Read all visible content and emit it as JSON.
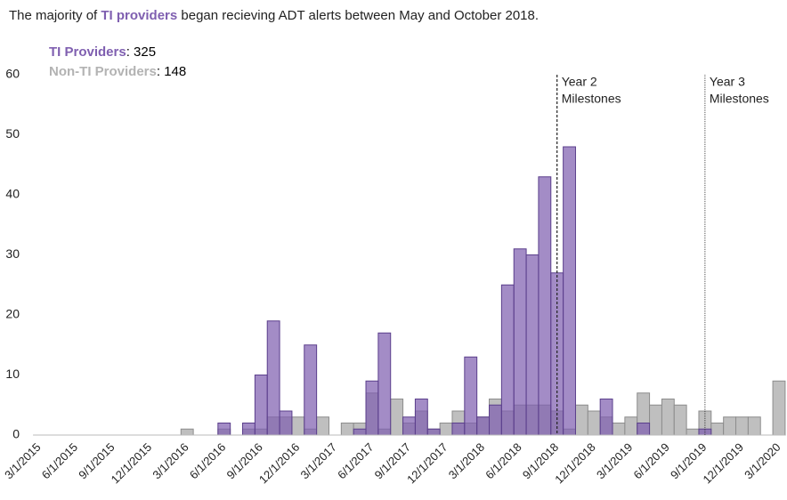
{
  "chart_data": {
    "type": "bar",
    "title_parts": [
      "The majority of ",
      "TI providers",
      " began recieving ADT alerts between May and October 2018."
    ],
    "categories": [
      "3/1/2015",
      null,
      null,
      "6/1/2015",
      null,
      null,
      "9/1/2015",
      null,
      null,
      "12/1/2015",
      null,
      null,
      "3/1/2016",
      null,
      null,
      "6/1/2016",
      null,
      null,
      "9/1/2016",
      null,
      null,
      "12/1/2016",
      null,
      null,
      "3/1/2017",
      null,
      null,
      "6/1/2017",
      null,
      null,
      "9/1/2017",
      null,
      null,
      "12/1/2017",
      null,
      null,
      "3/1/2018",
      null,
      null,
      "6/1/2018",
      null,
      null,
      "9/1/2018",
      null,
      null,
      "12/1/2018",
      null,
      null,
      "3/1/2019",
      null,
      null,
      "6/1/2019",
      null,
      null,
      "9/1/2019",
      null,
      null,
      "12/1/2019",
      null,
      null,
      "3/1/2020"
    ],
    "series": [
      {
        "name": "Non-TI Providers",
        "count": 148,
        "color": "#bfbfbf",
        "stroke": "#8c8c8c",
        "values": [
          0,
          0,
          0,
          0,
          0,
          0,
          0,
          0,
          0,
          0,
          0,
          0,
          1,
          0,
          0,
          1,
          0,
          1,
          1,
          3,
          3,
          3,
          1,
          3,
          0,
          2,
          2,
          7,
          1,
          6,
          2,
          4,
          1,
          2,
          4,
          2,
          3,
          6,
          4,
          5,
          5,
          5,
          4,
          1,
          5,
          4,
          3,
          2,
          3,
          7,
          5,
          6,
          5,
          1,
          4,
          2,
          3,
          3,
          3,
          0,
          9
        ]
      },
      {
        "name": "TI Providers",
        "count": 325,
        "color": "#7f5fb0",
        "stroke": "#5b3f8c",
        "values": [
          0,
          0,
          0,
          0,
          0,
          0,
          0,
          0,
          0,
          0,
          0,
          0,
          0,
          0,
          0,
          2,
          0,
          2,
          10,
          19,
          4,
          0,
          15,
          0,
          0,
          0,
          1,
          9,
          17,
          0,
          3,
          6,
          1,
          0,
          2,
          13,
          3,
          5,
          25,
          31,
          30,
          43,
          27,
          48,
          0,
          0,
          6,
          0,
          0,
          2,
          0,
          0,
          0,
          0,
          1,
          0,
          0,
          0,
          0,
          0,
          0
        ]
      }
    ],
    "ylim": [
      0,
      60
    ],
    "yticks": [
      0,
      10,
      20,
      30,
      40,
      50,
      60
    ],
    "grid": false,
    "annotations": [
      {
        "lines": [
          "Year 2",
          "Milestones"
        ],
        "x": "9/1/2018",
        "style": "dashed"
      },
      {
        "lines": [
          "Year 3",
          "Milestones"
        ],
        "x": "9/1/2019",
        "style": "dotted"
      }
    ]
  }
}
